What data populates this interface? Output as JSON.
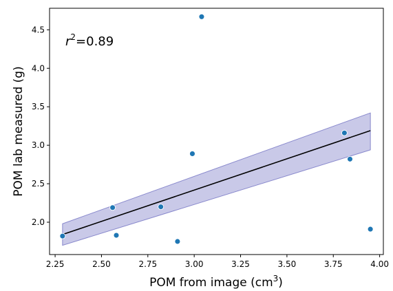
{
  "chart_data": {
    "type": "scatter",
    "xlabel": "POM from image (cm",
    "xlabel_superscript": "3",
    "xlabel_suffix": ")",
    "ylabel": "POM lab measured (g)",
    "annotation": {
      "symbol": "r",
      "superscript": "2",
      "text": "=0.89"
    },
    "xlim": [
      2.22,
      4.02
    ],
    "ylim": [
      1.58,
      4.78
    ],
    "xticks": [
      2.25,
      2.5,
      2.75,
      3.0,
      3.25,
      3.5,
      3.75,
      4.0
    ],
    "xtick_labels": [
      "2.25",
      "2.50",
      "2.75",
      "3.00",
      "3.25",
      "3.50",
      "3.75",
      "4.00"
    ],
    "yticks": [
      2.0,
      2.5,
      3.0,
      3.5,
      4.0,
      4.5
    ],
    "ytick_labels": [
      "2.0",
      "2.5",
      "3.0",
      "3.5",
      "4.0",
      "4.5"
    ],
    "grid": false,
    "legend": "none",
    "points": {
      "x": [
        2.29,
        2.56,
        2.58,
        2.82,
        2.91,
        2.99,
        3.04,
        3.81,
        3.84,
        3.95
      ],
      "y": [
        1.82,
        2.19,
        1.83,
        2.2,
        1.75,
        2.89,
        4.67,
        3.16,
        2.82,
        1.91
      ]
    },
    "fit_line": {
      "x": [
        2.29,
        3.95
      ],
      "y": [
        1.84,
        3.19
      ]
    },
    "confidence_band": {
      "x": [
        2.29,
        3.95
      ],
      "upper": [
        1.98,
        3.42
      ],
      "lower": [
        1.7,
        2.94
      ]
    },
    "colors": {
      "points": "#1f77b4",
      "fit_line": "#000000",
      "band": "#8888cc"
    }
  }
}
